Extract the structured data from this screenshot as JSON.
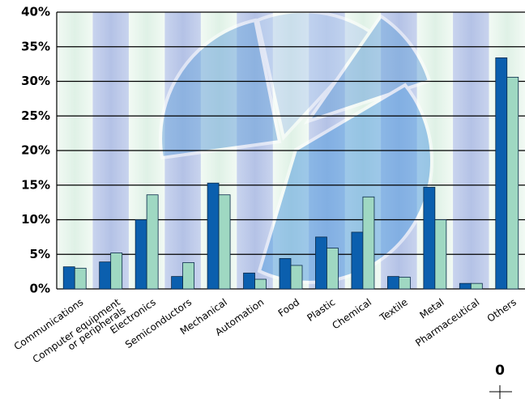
{
  "chart_data": {
    "type": "bar",
    "categories": [
      "Communications",
      "Computer equipment\nor peripherals",
      "Electronics",
      "Semiconductors",
      "Mechanical",
      "Automation",
      "Food",
      "Plastic",
      "Chemical",
      "Textile",
      "Metal",
      "Pharmaceutical",
      "Others"
    ],
    "series": [
      {
        "color": "#0b5fae",
        "values": [
          3.2,
          3.9,
          10.0,
          1.8,
          15.3,
          2.3,
          4.4,
          7.5,
          8.2,
          1.8,
          14.7,
          0.8,
          33.4
        ]
      },
      {
        "color": "#9fd8c2",
        "values": [
          3.0,
          5.2,
          13.6,
          3.8,
          13.6,
          1.4,
          3.4,
          5.9,
          13.3,
          1.7,
          10.0,
          0.8,
          30.6
        ]
      }
    ],
    "ylim": [
      0,
      40
    ],
    "yticks": [
      {
        "value": 0,
        "label": "0%"
      },
      {
        "value": 5,
        "label": "5%"
      },
      {
        "value": 10,
        "label": "10%"
      },
      {
        "value": 15,
        "label": "15%"
      },
      {
        "value": 20,
        "label": "20%"
      },
      {
        "value": 25,
        "label": "25%"
      },
      {
        "value": 30,
        "label": "30%"
      },
      {
        "value": 35,
        "label": "35%"
      },
      {
        "value": 40,
        "label": "40%"
      }
    ],
    "grid": true,
    "annotation": "0"
  }
}
